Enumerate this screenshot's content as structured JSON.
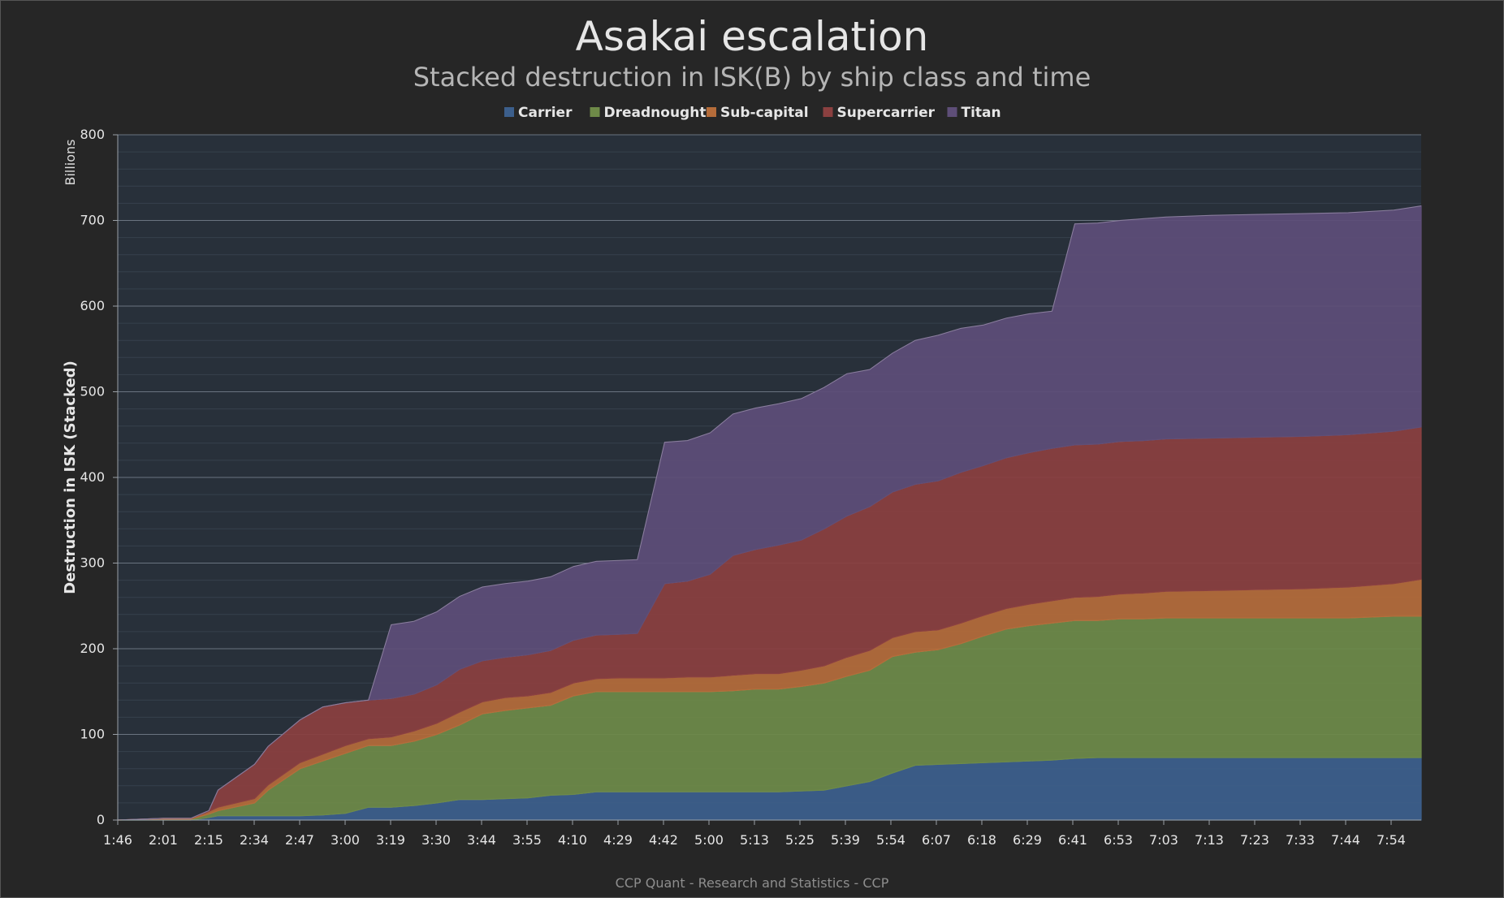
{
  "chart_data": {
    "type": "area",
    "stacked": true,
    "title": "Asakai escalation",
    "subtitle": "Stacked destruction in ISK(B) by ship class and time",
    "ylabel": "Destruction in ISK (Stacked)",
    "yunit": "Billions",
    "credit": "CCP Quant - Research and Statistics - CCP",
    "ylim": [
      0,
      800
    ],
    "yticks": [
      0,
      100,
      200,
      300,
      400,
      500,
      600,
      700,
      800
    ],
    "grid": true,
    "legend_position": "top-center",
    "x_tick_labels": [
      "1:46",
      "2:01",
      "2:15",
      "2:34",
      "2:47",
      "3:00",
      "3:19",
      "3:30",
      "3:44",
      "3:55",
      "4:10",
      "4:29",
      "4:42",
      "5:00",
      "5:13",
      "5:25",
      "5:39",
      "5:54",
      "6:07",
      "6:18",
      "6:29",
      "6:41",
      "6:53",
      "7:03",
      "7:13",
      "7:23",
      "7:33",
      "7:44",
      "7:54"
    ],
    "x": [
      0,
      1,
      1.6,
      2,
      2.2,
      3,
      3.3,
      4,
      4.5,
      5,
      5.5,
      6,
      6.5,
      7,
      7.5,
      8,
      8.5,
      9,
      9.5,
      10,
      10.5,
      11,
      11.4,
      12,
      12.5,
      13,
      13.5,
      14,
      14.5,
      15,
      15.5,
      16,
      16.5,
      17,
      17.5,
      18,
      18.5,
      19,
      19.5,
      20,
      20.5,
      21,
      21.5,
      22,
      22.5,
      23,
      24,
      25,
      26,
      27,
      28,
      28.6
    ],
    "series": [
      {
        "name": "Carrier",
        "color": "#3c5f8c",
        "values": [
          0,
          0,
          0,
          3,
          5,
          5,
          5,
          5,
          6,
          8,
          15,
          15,
          17,
          20,
          24,
          24,
          25,
          26,
          29,
          30,
          33,
          33,
          33,
          33,
          33,
          33,
          33,
          33,
          33,
          34,
          35,
          40,
          45,
          55,
          64,
          65,
          66,
          67,
          68,
          69,
          70,
          72,
          73,
          73,
          73,
          73,
          73,
          73,
          73,
          73,
          73,
          73
        ]
      },
      {
        "name": "Dreadnought",
        "color": "#6e8a48",
        "values": [
          0,
          1,
          1,
          4,
          6,
          15,
          30,
          55,
          63,
          70,
          72,
          72,
          75,
          80,
          87,
          100,
          103,
          105,
          105,
          115,
          117,
          117,
          117,
          117,
          117,
          117,
          118,
          120,
          120,
          122,
          125,
          128,
          130,
          136,
          132,
          134,
          140,
          148,
          155,
          158,
          160,
          161,
          160,
          162,
          162,
          163,
          163,
          163,
          163,
          163,
          165,
          165
        ]
      },
      {
        "name": "Sub-capital",
        "color": "#b56c3a",
        "values": [
          0,
          1,
          1,
          3,
          4,
          5,
          6,
          7,
          8,
          9,
          8,
          10,
          12,
          13,
          15,
          14,
          15,
          14,
          15,
          15,
          15,
          16,
          16,
          16,
          17,
          17,
          18,
          18,
          18,
          19,
          20,
          22,
          23,
          22,
          24,
          23,
          24,
          24,
          24,
          25,
          26,
          27,
          28,
          29,
          30,
          31,
          32,
          33,
          34,
          36,
          38,
          43
        ]
      },
      {
        "name": "Supercarrier",
        "color": "#8b4040",
        "values": [
          0,
          0,
          0,
          1,
          20,
          40,
          45,
          50,
          55,
          50,
          45,
          45,
          43,
          45,
          50,
          48,
          47,
          48,
          49,
          50,
          51,
          51,
          52,
          110,
          112,
          120,
          140,
          145,
          150,
          152,
          160,
          165,
          168,
          170,
          172,
          174,
          176,
          175,
          176,
          177,
          178,
          178,
          178,
          178,
          178,
          178,
          178,
          178,
          178,
          178,
          178,
          178
        ]
      },
      {
        "name": "Titan",
        "color": "#5e4e78",
        "values": [
          0,
          0,
          0,
          0,
          0,
          0,
          0,
          0,
          0,
          0,
          0,
          86,
          85,
          85,
          85,
          86,
          86,
          86,
          86,
          86,
          86,
          86,
          86,
          165,
          164,
          165,
          165,
          165,
          165,
          165,
          165,
          166,
          160,
          162,
          168,
          170,
          168,
          164,
          163,
          162,
          160,
          258,
          258,
          258,
          259,
          259,
          260,
          260,
          260,
          259,
          258,
          258
        ]
      }
    ]
  }
}
